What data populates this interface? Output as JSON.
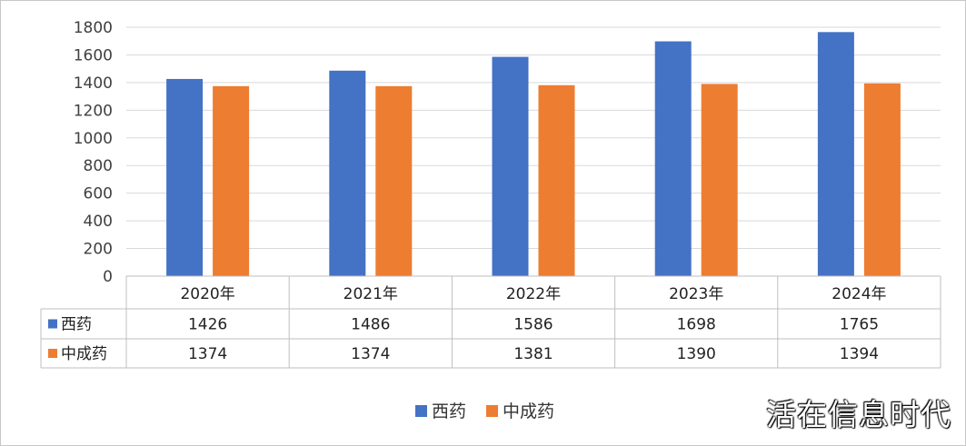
{
  "chart_data": {
    "type": "bar",
    "categories": [
      "2020年",
      "2021年",
      "2022年",
      "2023年",
      "2024年"
    ],
    "series": [
      {
        "name": "西药",
        "values": [
          1426,
          1486,
          1586,
          1698,
          1765
        ],
        "color": "#4472C4"
      },
      {
        "name": "中成药",
        "values": [
          1374,
          1374,
          1381,
          1390,
          1394
        ],
        "color": "#ED7D31"
      }
    ],
    "ylim": [
      0,
      1800
    ],
    "yticks": [
      0,
      200,
      400,
      600,
      800,
      1000,
      1200,
      1400,
      1600,
      1800
    ],
    "grid": true,
    "legend_placement": "bottom-center",
    "data_table": true
  },
  "watermark": "活在信息时代"
}
